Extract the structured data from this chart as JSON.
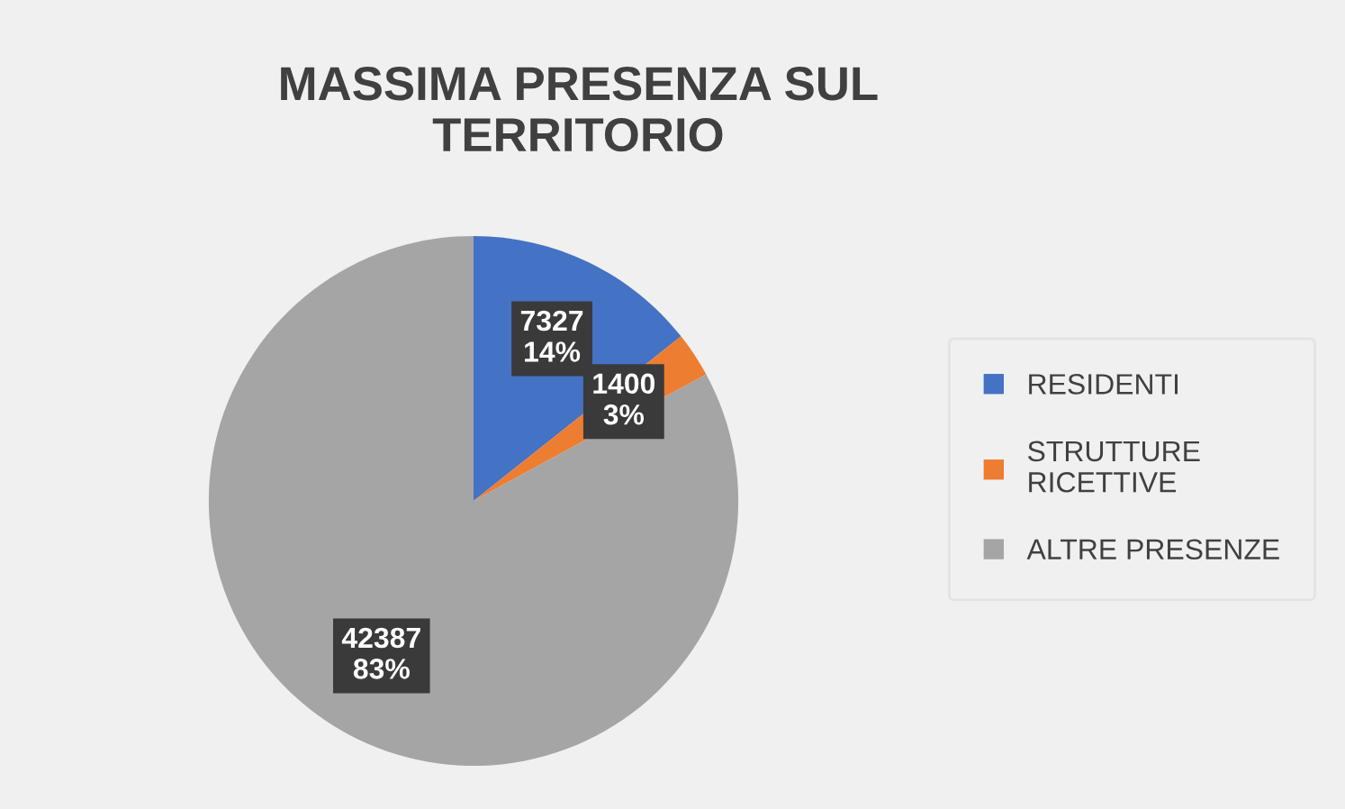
{
  "chart_data": {
    "type": "pie",
    "title": "MASSIMA PRESENZA SUL TERRITORIO",
    "categories": [
      "RESIDENTI",
      "STRUTTURE RICETTIVE",
      "ALTRE PRESENZE"
    ],
    "values": [
      7327,
      1400,
      42387
    ],
    "colors": [
      "#4472c4",
      "#ed7d31",
      "#a5a5a5"
    ],
    "value_labels": [
      "7327\n14%",
      "1400\n3%",
      "42387\n83%"
    ],
    "legend": "right"
  }
}
